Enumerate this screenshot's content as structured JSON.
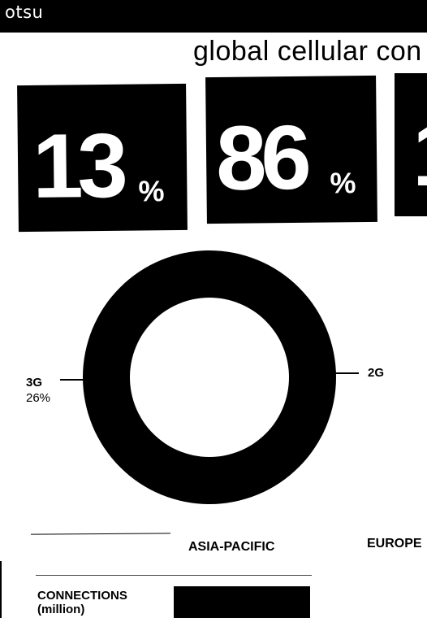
{
  "window": {
    "label": "otsu"
  },
  "headline": "global cellular con",
  "stats": [
    {
      "value": "13",
      "unit": "%"
    },
    {
      "value": "86",
      "unit": "%"
    },
    {
      "value": "1",
      "unit": ""
    }
  ],
  "donut": {
    "segments": [
      {
        "label": "3G",
        "value_text": "26%",
        "share": 0.26,
        "color": "#000000"
      },
      {
        "label": "2G",
        "value_text": "",
        "share": 0.74,
        "color": "#000000"
      }
    ],
    "ring_color": "#000000",
    "hole_color": "#ffffff"
  },
  "regions": {
    "asia_pacific": "ASIA-PACIFIC",
    "europe": "EUROPE"
  },
  "connections": {
    "title_line1": "CONNECTIONS",
    "title_line2": "(million)"
  }
}
